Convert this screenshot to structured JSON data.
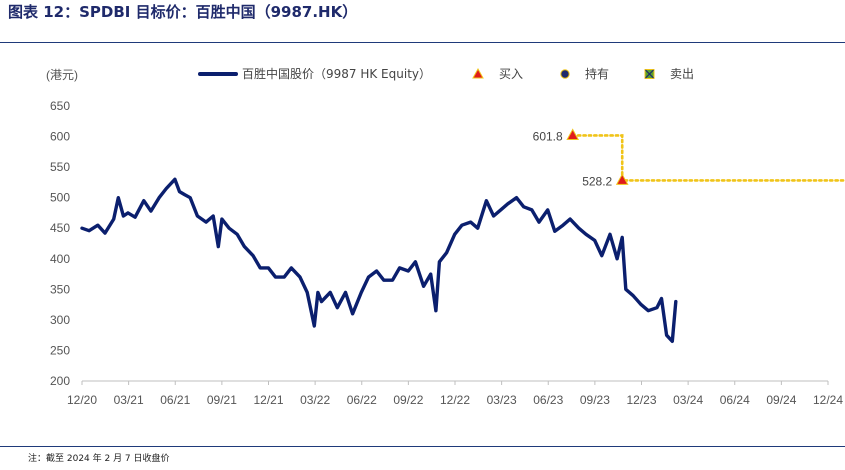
{
  "page": {
    "title": "图表 12：SPDBI 目标价：百胜中国（9987.HK）",
    "footnote": "注：截至 2024 年 2 月 7 日收盘价"
  },
  "colors": {
    "price_line": "#0b1f6e",
    "target_dots": "#f0c419",
    "buy_marker": "#e01b1b",
    "sell_marker": "#5aa02c",
    "hold_marker": "#1f2a6b",
    "axis": "#bfbfbf"
  },
  "chart_data": {
    "type": "line",
    "ylabel": "(港元)",
    "ylim": [
      200,
      650
    ],
    "yticks": [
      200,
      250,
      300,
      350,
      400,
      450,
      500,
      550,
      600,
      650
    ],
    "xlim": [
      "2020-12",
      "2024-12"
    ],
    "xticks": [
      "12/20",
      "03/21",
      "06/21",
      "09/21",
      "12/21",
      "03/22",
      "06/22",
      "09/22",
      "12/22",
      "03/23",
      "06/23",
      "09/23",
      "12/23",
      "03/24",
      "06/24",
      "09/24",
      "12/24"
    ],
    "legend": {
      "placement": "top",
      "price": "百胜中国股价（9987 HK Equity）",
      "buy": "买入",
      "hold": "持有",
      "sell": "卖出"
    },
    "series": [
      {
        "name": "百胜中国股价（9987 HK Equity）",
        "x": [
          "2020-12-01",
          "2020-12-15",
          "2021-01-01",
          "2021-01-15",
          "2021-02-01",
          "2021-02-10",
          "2021-02-20",
          "2021-03-01",
          "2021-03-15",
          "2021-04-01",
          "2021-04-15",
          "2021-05-01",
          "2021-05-15",
          "2021-06-01",
          "2021-06-10",
          "2021-06-20",
          "2021-07-01",
          "2021-07-15",
          "2021-08-01",
          "2021-08-15",
          "2021-08-25",
          "2021-09-01",
          "2021-09-15",
          "2021-10-01",
          "2021-10-15",
          "2021-11-01",
          "2021-11-15",
          "2021-12-01",
          "2021-12-15",
          "2022-01-01",
          "2022-01-15",
          "2022-02-01",
          "2022-02-15",
          "2022-03-01",
          "2022-03-08",
          "2022-03-15",
          "2022-04-01",
          "2022-04-15",
          "2022-05-01",
          "2022-05-15",
          "2022-06-01",
          "2022-06-15",
          "2022-07-01",
          "2022-07-15",
          "2022-08-01",
          "2022-08-15",
          "2022-09-01",
          "2022-09-15",
          "2022-10-01",
          "2022-10-15",
          "2022-10-25",
          "2022-11-01",
          "2022-11-15",
          "2022-12-01",
          "2022-12-15",
          "2023-01-01",
          "2023-01-15",
          "2023-02-01",
          "2023-02-15",
          "2023-03-01",
          "2023-03-15",
          "2023-04-01",
          "2023-04-15",
          "2023-05-01",
          "2023-05-15",
          "2023-06-01",
          "2023-06-15",
          "2023-07-01",
          "2023-07-15",
          "2023-08-01",
          "2023-08-15",
          "2023-09-01",
          "2023-09-15",
          "2023-10-01",
          "2023-10-15",
          "2023-10-25",
          "2023-11-01",
          "2023-11-15",
          "2023-12-01",
          "2023-12-15",
          "2024-01-01",
          "2024-01-10",
          "2024-01-20",
          "2024-01-31",
          "2024-02-07"
        ],
        "values": [
          450,
          446,
          455,
          442,
          465,
          500,
          470,
          475,
          468,
          495,
          478,
          500,
          515,
          530,
          510,
          505,
          500,
          470,
          460,
          470,
          420,
          465,
          450,
          440,
          420,
          405,
          385,
          385,
          370,
          370,
          385,
          370,
          345,
          290,
          345,
          330,
          345,
          320,
          345,
          310,
          345,
          370,
          380,
          365,
          365,
          385,
          380,
          395,
          355,
          375,
          315,
          395,
          410,
          440,
          455,
          460,
          450,
          495,
          470,
          480,
          490,
          500,
          485,
          480,
          460,
          480,
          445,
          455,
          465,
          450,
          440,
          430,
          405,
          440,
          400,
          435,
          350,
          340,
          325,
          315,
          320,
          335,
          275,
          265,
          330
        ]
      }
    ],
    "ratings": [
      {
        "type": "buy",
        "date": "2023-07-20",
        "target": 601.8,
        "label": "601.8"
      },
      {
        "type": "buy",
        "date": "2023-10-25",
        "target": 528.2,
        "label": "528.2"
      }
    ],
    "target_line": {
      "from": "2023-07-20",
      "to": "2024-12-31"
    },
    "grid": false
  }
}
